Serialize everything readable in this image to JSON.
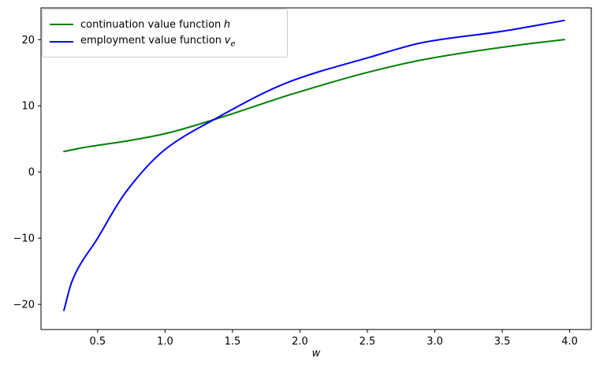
{
  "chart_data": {
    "type": "line",
    "title": "",
    "xlabel": "w",
    "ylabel": "",
    "grid": false,
    "legend_position": "upper left",
    "xlim": [
      0.08,
      4.16
    ],
    "ylim": [
      -23.8,
      24.8
    ],
    "x_ticks": {
      "values": [
        0.5,
        1.0,
        1.5,
        2.0,
        2.5,
        3.0,
        3.5,
        4.0
      ],
      "labels": [
        "0.5",
        "1.0",
        "1.5",
        "2.0",
        "2.5",
        "3.0",
        "3.5",
        "4.0"
      ]
    },
    "y_ticks": {
      "values": [
        -20,
        -10,
        0,
        10,
        20
      ],
      "labels": [
        "−20",
        "−10",
        "0",
        "10",
        "20"
      ]
    },
    "axis_color": "#000000",
    "series": [
      {
        "id": "h",
        "legend_text": "continuation value function",
        "math": "h",
        "sub": "",
        "color": "#008000",
        "points": [
          [
            0.25,
            3.1
          ],
          [
            0.37,
            3.6
          ],
          [
            0.75,
            4.8
          ],
          [
            1.0,
            5.8
          ],
          [
            1.36,
            7.9
          ],
          [
            1.93,
            11.7
          ],
          [
            2.51,
            15.1
          ],
          [
            2.92,
            17.0
          ],
          [
            3.63,
            19.2
          ],
          [
            3.96,
            20.0
          ]
        ]
      },
      {
        "id": "v_e",
        "legend_text": "employment value function",
        "math": "v",
        "sub": "e",
        "color": "#0000ff",
        "points": [
          [
            0.25,
            -20.9
          ],
          [
            0.31,
            -16.5
          ],
          [
            0.5,
            -10.0
          ],
          [
            0.71,
            -3.0
          ],
          [
            1.0,
            3.4
          ],
          [
            1.36,
            7.9
          ],
          [
            1.93,
            13.7
          ],
          [
            2.51,
            17.3
          ],
          [
            2.92,
            19.6
          ],
          [
            3.51,
            21.3
          ],
          [
            3.96,
            22.9
          ]
        ]
      }
    ]
  }
}
